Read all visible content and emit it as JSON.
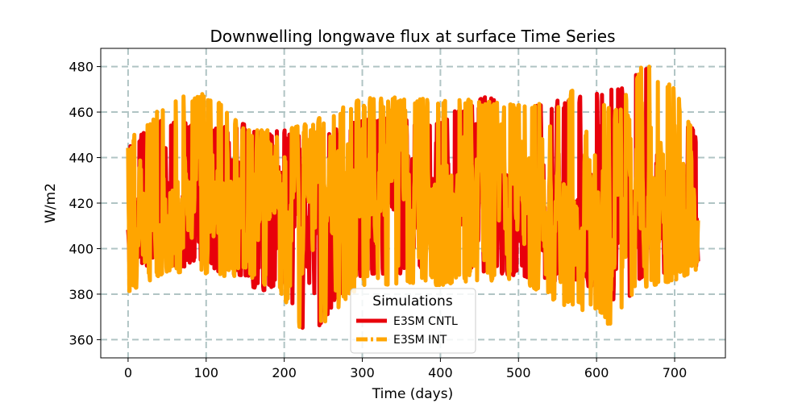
{
  "chart_data": {
    "type": "line",
    "title": "Downwelling longwave flux at surface Time Series",
    "xlabel": "Time (days)",
    "ylabel": "W/m2",
    "xlim": [
      -35,
      765
    ],
    "ylim": [
      352,
      488
    ],
    "xticks": [
      0,
      100,
      200,
      300,
      400,
      500,
      600,
      700
    ],
    "yticks": [
      360,
      380,
      400,
      420,
      440,
      460,
      480
    ],
    "grid": true,
    "legend": {
      "title": "Simulations",
      "placement": "lower-center"
    },
    "series": [
      {
        "name": "E3SM CNTL",
        "color": "#e8000b",
        "style": "solid",
        "x_start": 0,
        "x_end": 730,
        "x_step": 1,
        "mean": 420,
        "envelope": [
          [
            0,
            392,
            446
          ],
          [
            50,
            393,
            458
          ],
          [
            100,
            391,
            452
          ],
          [
            150,
            388,
            455
          ],
          [
            165,
            381,
            452
          ],
          [
            200,
            384,
            452
          ],
          [
            230,
            360,
            448
          ],
          [
            300,
            389,
            457
          ],
          [
            400,
            389,
            458
          ],
          [
            460,
            390,
            467
          ],
          [
            500,
            388,
            462
          ],
          [
            600,
            383,
            468
          ],
          [
            630,
            372,
            471
          ],
          [
            660,
            388,
            481
          ],
          [
            700,
            390,
            468
          ],
          [
            730,
            392,
            448
          ]
        ]
      },
      {
        "name": "E3SM INT",
        "color": "#ffa500",
        "style": "dashdot",
        "x_start": 0,
        "x_end": 730,
        "x_step": 1,
        "mean": 421,
        "envelope": [
          [
            0,
            381,
            447
          ],
          [
            50,
            390,
            466
          ],
          [
            100,
            388,
            470
          ],
          [
            150,
            388,
            452
          ],
          [
            200,
            378,
            452
          ],
          [
            230,
            359,
            455
          ],
          [
            300,
            384,
            466
          ],
          [
            400,
            384,
            467
          ],
          [
            500,
            387,
            463
          ],
          [
            550,
            376,
            466
          ],
          [
            600,
            371,
            475
          ],
          [
            620,
            365,
            458
          ],
          [
            660,
            383,
            482
          ],
          [
            700,
            386,
            471
          ],
          [
            730,
            391,
            448
          ]
        ]
      }
    ]
  }
}
